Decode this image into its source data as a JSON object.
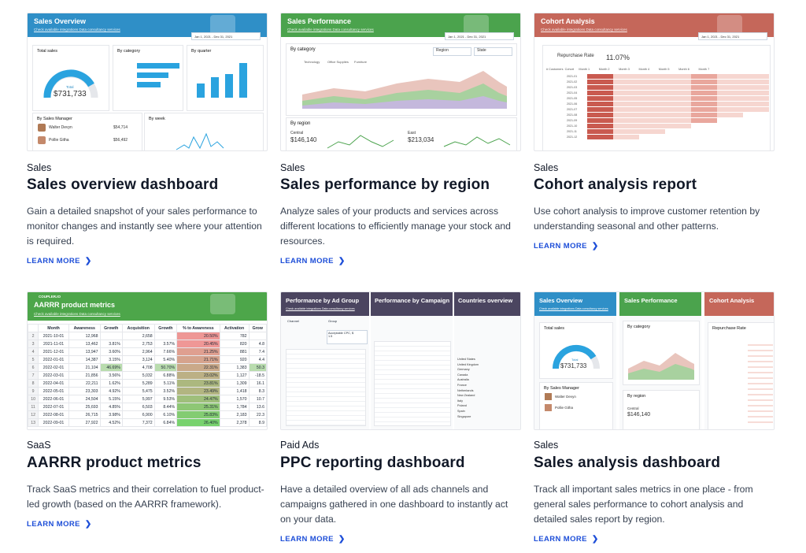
{
  "colors": {
    "sales_blue": "#2f8fc7",
    "sales_green": "#4ba34d",
    "cohort_red": "#c5675a",
    "aarrr_green": "#4da64a",
    "ppc_purple": "#574b6e",
    "link_blue": "#1d4ed8"
  },
  "cards": [
    {
      "category": "Sales",
      "title": "Sales overview dashboard",
      "description": "Gain a detailed snapshot of your sales performance to monitor changes and instantly see where your attention is required.",
      "cta": "LEARN MORE",
      "thumb": {
        "title": "Sales Overview",
        "links": "Check available integrations    Data consultancy services",
        "date": "Jan 1, 2021 - Dec 31, 2021",
        "panels": [
          "Total sales",
          "By category",
          "By quarter",
          "By Sales Manager",
          "By week"
        ],
        "total_label": "Total",
        "total_value": "$731,733",
        "managers": [
          {
            "name": "Walter Devyn",
            "value": "$54,714"
          },
          {
            "name": "Pollie Githa",
            "value": "$56,492"
          }
        ]
      }
    },
    {
      "category": "Sales",
      "title": "Sales performance by region",
      "description": "Analyze sales of your products and services across different locations to efficiently manage your stock and resources.",
      "cta": "LEARN MORE",
      "thumb": {
        "title": "Sales Performance",
        "links": "Check available integrations    Data consultancy services",
        "date": "Jan 1, 2021 - Dec 31, 2021",
        "panels": [
          "By category",
          "By region"
        ],
        "filters": [
          "Region",
          "State"
        ],
        "legend": [
          "Technology",
          "Office Supplies",
          "Furniture"
        ],
        "regions": [
          {
            "name": "Central",
            "value": "$146,140"
          },
          {
            "name": "East",
            "value": "$213,034"
          }
        ]
      }
    },
    {
      "category": "Sales",
      "title": "Cohort analysis report",
      "description": "Use cohort analysis to improve customer retention by understanding seasonal and other patterns.",
      "cta": "LEARN MORE",
      "thumb": {
        "title": "Cohort Analysis",
        "links": "Check available integrations    Data consultancy services",
        "date": "Jan 1, 2021 - Dec 31, 2021",
        "metric_label": "Repurchase Rate",
        "metric_value": "11.07%",
        "columns": [
          "# Customers",
          "Cohort",
          "Month 1",
          "Month 2",
          "Month 3",
          "Month 4",
          "Month 5",
          "Month 6",
          "Month 7"
        ],
        "cohorts": [
          "2021-01",
          "2021-02",
          "2021-03",
          "2021-04",
          "2021-05",
          "2021-06",
          "2021-07",
          "2021-08",
          "2021-09",
          "2021-10",
          "2021-11",
          "2021-12"
        ]
      }
    },
    {
      "category": "SaaS",
      "title": "AARRR product metrics",
      "description": "Track SaaS metrics and their correlation to fuel product-led growth (based on the AARRR framework).",
      "cta": "LEARN MORE",
      "thumb": {
        "brand": "COUPLER.IO",
        "title": "AARRR product metrics",
        "links": "Check available integrations    Data consultancy services",
        "columns": [
          "",
          "Month",
          "Awareness",
          "Growth",
          "Acquisition",
          "Growth",
          "% to Awareness",
          "Activation",
          "Grow"
        ],
        "rows": [
          [
            "2",
            "2021-10-01",
            "12,968",
            "",
            "2,658",
            "",
            "20.50%",
            "782",
            ""
          ],
          [
            "3",
            "2021-11-01",
            "13,462",
            "3.81%",
            "2,753",
            "3.57%",
            "20.45%",
            "820",
            "4.8"
          ],
          [
            "4",
            "2021-12-01",
            "13,947",
            "3.60%",
            "2,964",
            "7.66%",
            "21.25%",
            "881",
            "7.4"
          ],
          [
            "5",
            "2022-01-01",
            "14,387",
            "3.15%",
            "3,124",
            "5.40%",
            "21.71%",
            "920",
            "4.4"
          ],
          [
            "6",
            "2022-02-01",
            "21,104",
            "46.69%",
            "4,708",
            "50.70%",
            "22.31%",
            "1,383",
            "50.3"
          ],
          [
            "7",
            "2022-03-01",
            "21,856",
            "3.56%",
            "5,032",
            "6.88%",
            "23.02%",
            "1,127",
            "-18.5"
          ],
          [
            "8",
            "2022-04-01",
            "22,211",
            "1.62%",
            "5,289",
            "5.11%",
            "23.81%",
            "1,309",
            "16.1"
          ],
          [
            "9",
            "2022-05-01",
            "23,303",
            "4.92%",
            "5,475",
            "3.52%",
            "23.49%",
            "1,418",
            "8.3"
          ],
          [
            "10",
            "2022-06-01",
            "24,504",
            "5.15%",
            "5,997",
            "9.53%",
            "24.47%",
            "1,570",
            "10.7"
          ],
          [
            "11",
            "2022-07-01",
            "25,693",
            "4.85%",
            "6,503",
            "8.44%",
            "25.31%",
            "1,784",
            "13.6"
          ],
          [
            "12",
            "2022-08-01",
            "26,715",
            "3.98%",
            "6,900",
            "6.10%",
            "25.83%",
            "2,183",
            "22.3"
          ],
          [
            "13",
            "2022-09-01",
            "27,922",
            "4.52%",
            "7,372",
            "6.84%",
            "26.40%",
            "2,378",
            "8.9"
          ]
        ]
      }
    },
    {
      "category": "Paid Ads",
      "title": "PPC reporting dashboard",
      "description": "Have a detailed overview of all ads channels and campaigns gathered in one dashboard to instantly act on your data.",
      "cta": "LEARN MORE",
      "thumb": {
        "panels": [
          "Performance by Ad Group",
          "Performance by Campaign",
          "Countries overview"
        ],
        "links": "Check available integrations    Data consultancy services",
        "filters": [
          "Channel",
          "Group"
        ],
        "kpi_label": "Acceptable CPC, $",
        "kpi_value": "1.5",
        "countries": [
          "United States",
          "United Kingdom",
          "Germany",
          "Canada",
          "Australia",
          "France",
          "Netherlands",
          "New Zealand",
          "Italy",
          "Poland",
          "Spain",
          "Singapore"
        ]
      }
    },
    {
      "category": "Sales",
      "title": "Sales analysis dashboard",
      "description": "Track all important sales metrics in one place - from general sales performance to cohort analysis and detailed sales report by region.",
      "cta": "LEARN MORE",
      "thumb": {
        "tabs": [
          "Sales Overview",
          "Sales Performance",
          "Cohort Analysis"
        ],
        "links": "Check available integrations    Data consultancy services",
        "panels": [
          "Total sales",
          "By category",
          "Repurchase Rate",
          "By Sales Manager",
          "By region"
        ],
        "total_label": "Total",
        "total_value": "$731,733",
        "region_name": "Central",
        "region_value": "$146,140",
        "managers": [
          "Walter Devyn",
          "Pollie Githa"
        ]
      }
    }
  ]
}
